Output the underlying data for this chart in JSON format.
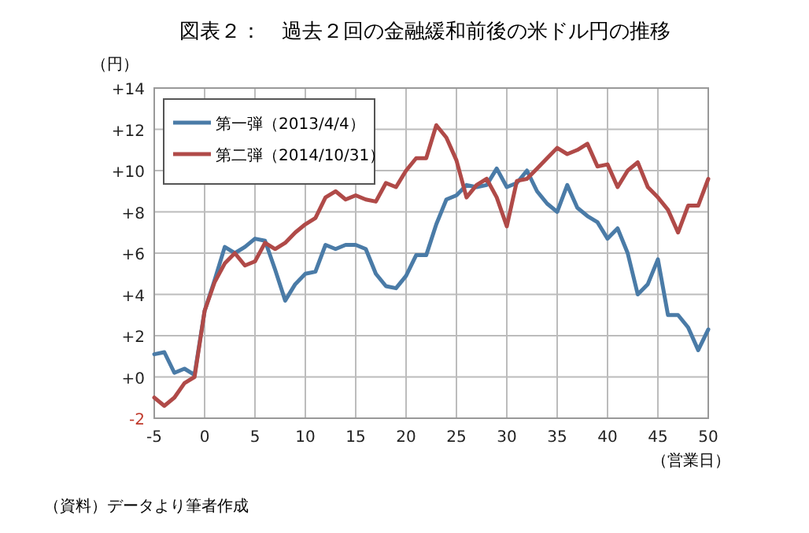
{
  "chart_data": {
    "type": "line",
    "title": "図表２：　過去２回の金融緩和前後の米ドル円の推移",
    "ylabel": "（円）",
    "xlabel": "（営業日）",
    "annotations": [
      "（資料）データより筆者作成"
    ],
    "x": [
      -5,
      -4,
      -3,
      -2,
      -1,
      0,
      1,
      2,
      3,
      4,
      5,
      6,
      7,
      8,
      9,
      10,
      11,
      12,
      13,
      14,
      15,
      16,
      17,
      18,
      19,
      20,
      21,
      22,
      23,
      24,
      25,
      26,
      27,
      28,
      29,
      30,
      31,
      32,
      33,
      34,
      35,
      36,
      37,
      38,
      39,
      40,
      41,
      42,
      43,
      44,
      45,
      46,
      47,
      48,
      49,
      50
    ],
    "series": [
      {
        "name": "第一弾（2013/4/4）",
        "color": "#4a7ba7",
        "values": [
          1.1,
          1.2,
          0.2,
          0.4,
          0.1,
          3.2,
          4.7,
          6.3,
          6.0,
          6.3,
          6.7,
          6.6,
          5.2,
          3.7,
          4.5,
          5.0,
          5.1,
          6.4,
          6.2,
          6.4,
          6.4,
          6.2,
          5.0,
          4.4,
          4.3,
          4.9,
          5.9,
          5.9,
          7.4,
          8.6,
          8.8,
          9.3,
          9.2,
          9.3,
          10.1,
          9.2,
          9.4,
          10.0,
          9.0,
          8.4,
          8.0,
          9.3,
          8.2,
          7.8,
          7.5,
          6.7,
          7.2,
          6.0,
          4.0,
          4.5,
          5.7,
          3.0,
          3.0,
          2.4,
          1.3,
          2.3
        ]
      },
      {
        "name": "第二弾（2014/10/31）",
        "color": "#b04a48",
        "values": [
          -1.0,
          -1.4,
          -1.0,
          -0.3,
          0.0,
          3.2,
          4.6,
          5.5,
          6.0,
          5.4,
          5.6,
          6.5,
          6.2,
          6.5,
          7.0,
          7.4,
          7.7,
          8.7,
          9.0,
          8.6,
          8.8,
          8.6,
          8.5,
          9.4,
          9.2,
          10.0,
          10.6,
          10.6,
          12.2,
          11.6,
          10.5,
          8.7,
          9.3,
          9.6,
          8.7,
          7.3,
          9.5,
          9.6,
          10.1,
          10.6,
          11.1,
          10.8,
          11.0,
          11.3,
          10.2,
          10.3,
          9.2,
          10.0,
          10.4,
          9.2,
          8.7,
          8.1,
          7.0,
          8.3,
          8.3,
          9.6
        ]
      }
    ],
    "xlim": [
      -5,
      50
    ],
    "xticks": [
      -5,
      0,
      5,
      10,
      15,
      20,
      25,
      30,
      35,
      40,
      45,
      50
    ],
    "ylim": [
      -2,
      14
    ],
    "yticks": [
      {
        "value": -2,
        "label": "-2"
      },
      {
        "value": 0,
        "label": "+0"
      },
      {
        "value": 2,
        "label": "+2"
      },
      {
        "value": 4,
        "label": "+4"
      },
      {
        "value": 6,
        "label": "+6"
      },
      {
        "value": 8,
        "label": "+8"
      },
      {
        "value": 10,
        "label": "+10"
      },
      {
        "value": 12,
        "label": "+12"
      },
      {
        "value": 14,
        "label": "+14"
      }
    ],
    "grid": true,
    "legend": "top left",
    "marker": "none",
    "line_style": "solid"
  }
}
